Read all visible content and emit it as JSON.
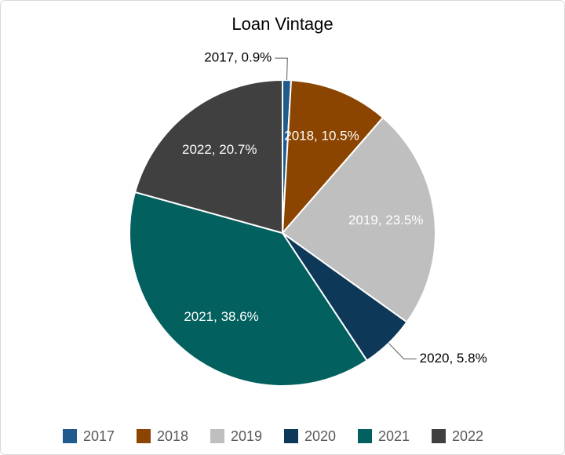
{
  "chart_data": {
    "type": "pie",
    "title": "Loan Vintage",
    "categories": [
      "2017",
      "2018",
      "2019",
      "2020",
      "2021",
      "2022"
    ],
    "values": [
      0.9,
      10.5,
      23.5,
      5.8,
      38.6,
      20.7
    ],
    "value_labels": [
      "2017, 0.9%",
      "2018, 10.5%",
      "2019, 23.5%",
      "2020, 5.8%",
      "2021, 38.6%",
      "2022, 20.7%"
    ],
    "colors": [
      "#1f5b8c",
      "#8b4500",
      "#bfbfbf",
      "#0d3858",
      "#02605f",
      "#404040"
    ],
    "legend": "bottom"
  }
}
